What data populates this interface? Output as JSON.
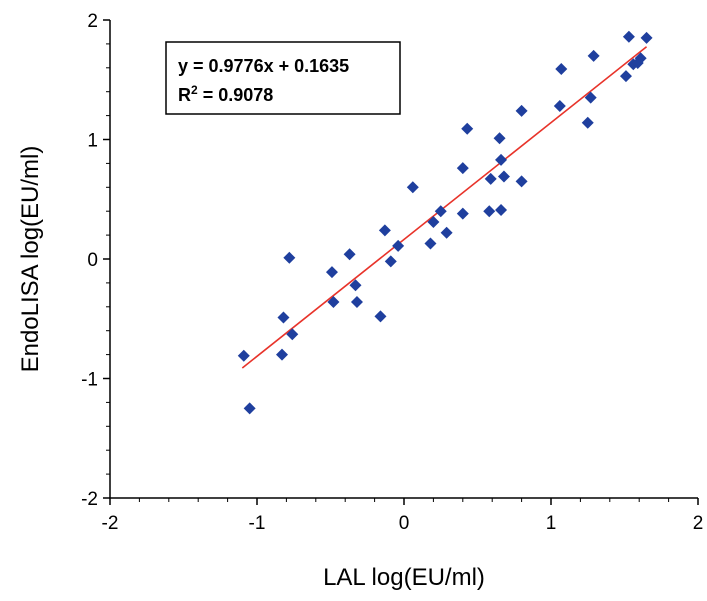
{
  "chart_data": {
    "type": "scatter",
    "xlabel": "LAL log(EU/ml)",
    "ylabel": "EndoLISA log(EU/ml)",
    "xlim": [
      -2,
      2
    ],
    "ylim": [
      -2,
      2
    ],
    "x_ticks": [
      "-2",
      "-1",
      "0",
      "1",
      "2"
    ],
    "y_ticks": [
      "-2",
      "-1",
      "0",
      "1",
      "2"
    ],
    "grid": false,
    "marker_color": "#1f3f9e",
    "trendline_color": "#e8332a",
    "trendline": {
      "slope": 0.9776,
      "intercept": 0.1635,
      "x_range": [
        -1.1,
        1.65
      ]
    },
    "annotation": {
      "equation": "y = 0.9776x + 0.1635",
      "r2_label": "R",
      "r2_sup": "2",
      "r2_value": " = 0.9078"
    },
    "series": [
      {
        "points": [
          [
            -1.09,
            -0.81
          ],
          [
            -1.05,
            -1.25
          ],
          [
            -0.83,
            -0.8
          ],
          [
            -0.82,
            -0.49
          ],
          [
            -0.78,
            0.01
          ],
          [
            -0.76,
            -0.63
          ],
          [
            -0.49,
            -0.11
          ],
          [
            -0.48,
            -0.36
          ],
          [
            -0.37,
            0.04
          ],
          [
            -0.33,
            -0.22
          ],
          [
            -0.32,
            -0.36
          ],
          [
            -0.16,
            -0.48
          ],
          [
            -0.13,
            0.24
          ],
          [
            -0.09,
            -0.02
          ],
          [
            -0.04,
            0.11
          ],
          [
            0.06,
            0.6
          ],
          [
            0.18,
            0.13
          ],
          [
            0.2,
            0.31
          ],
          [
            0.25,
            0.4
          ],
          [
            0.29,
            0.22
          ],
          [
            0.4,
            0.38
          ],
          [
            0.4,
            0.76
          ],
          [
            0.43,
            1.09
          ],
          [
            0.58,
            0.4
          ],
          [
            0.59,
            0.67
          ],
          [
            0.65,
            1.01
          ],
          [
            0.66,
            0.83
          ],
          [
            0.66,
            0.41
          ],
          [
            0.68,
            0.69
          ],
          [
            0.8,
            0.65
          ],
          [
            0.8,
            1.24
          ],
          [
            1.06,
            1.28
          ],
          [
            1.07,
            1.59
          ],
          [
            1.25,
            1.14
          ],
          [
            1.27,
            1.35
          ],
          [
            1.29,
            1.7
          ],
          [
            1.51,
            1.53
          ],
          [
            1.53,
            1.86
          ],
          [
            1.56,
            1.63
          ],
          [
            1.59,
            1.64
          ],
          [
            1.61,
            1.68
          ],
          [
            1.65,
            1.85
          ]
        ]
      }
    ]
  }
}
